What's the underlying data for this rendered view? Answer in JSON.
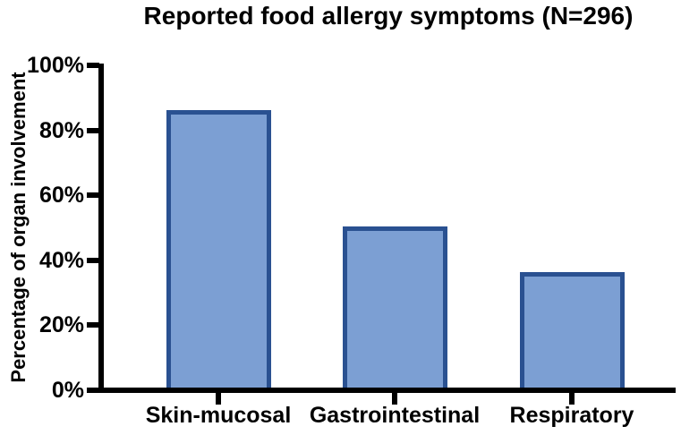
{
  "chart_data": {
    "type": "bar",
    "title": "Reported food allergy symptoms (N=296)",
    "xlabel": "",
    "ylabel": "Percentage of organ involvement",
    "categories": [
      "Skin-mucosal",
      "Gastrointestinal",
      "Respiratory"
    ],
    "values": [
      86,
      50,
      36
    ],
    "ylim": [
      0,
      100
    ],
    "yticks": [
      0,
      20,
      40,
      60,
      80,
      100
    ],
    "ytick_labels": [
      "0%",
      "20%",
      "40%",
      "60%",
      "80%",
      "100%"
    ],
    "grid": false,
    "legend": null,
    "bar_fill_color": "#7c9fd3",
    "bar_border_color": "#2a5191",
    "axis_color": "#000000",
    "text_color": "#000000"
  }
}
